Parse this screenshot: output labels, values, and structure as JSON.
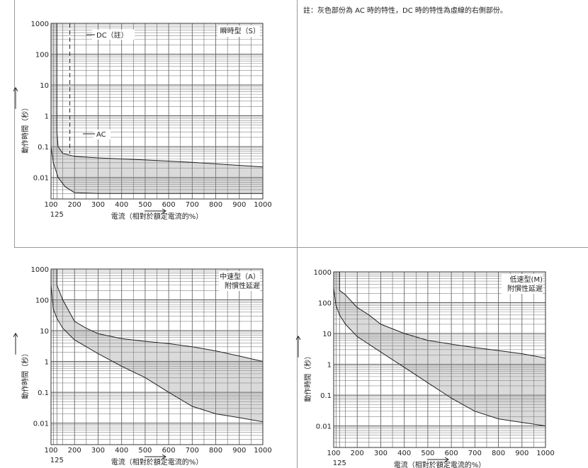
{
  "note": "註：灰色部份為 AC 時的特性，DC 時的特性為虛線的右側部份。",
  "chart_data": [
    {
      "type": "area",
      "id": "S",
      "title": "瞬時型（S）",
      "title2": "",
      "xlabel": "電流（相對於額定電流的%）",
      "ylabel": "動作時間（秒）",
      "xlim": [
        100,
        1000
      ],
      "ylim": [
        0.002,
        1000
      ],
      "yscale": "log",
      "x_ticks": [
        "100",
        "200",
        "300",
        "400",
        "500",
        "600",
        "700",
        "800",
        "900",
        "1000"
      ],
      "x_extra_tick": "125",
      "y_ticks": [
        "1000",
        "100",
        "10",
        "1",
        "0.1",
        "0.01"
      ],
      "annotations": [
        "DC（註）",
        "AC"
      ],
      "series": [
        {
          "values_upper": [
            [
              125,
              1000
            ],
            [
              125,
              0.3
            ],
            [
              130,
              0.1
            ],
            [
              150,
              0.06
            ],
            [
              200,
              0.048
            ],
            [
              300,
              0.043
            ],
            [
              500,
              0.037
            ],
            [
              700,
              0.031
            ],
            [
              1000,
              0.022
            ]
          ]
        },
        {
          "values_lower": [
            [
              100,
              1000
            ],
            [
              100,
              0.1
            ],
            [
              110,
              0.03
            ],
            [
              130,
              0.01
            ],
            [
              160,
              0.005
            ],
            [
              200,
              0.0032
            ],
            [
              300,
              0.003
            ],
            [
              500,
              0.003
            ],
            [
              1000,
              0.003
            ]
          ]
        }
      ]
    },
    {
      "type": "area",
      "id": "A",
      "title": "中速型（A）",
      "title2": "附慣性延遲",
      "xlabel": "電流（相對於額定電流的%）",
      "ylabel": "動作時間（秒）",
      "xlim": [
        100,
        1000
      ],
      "ylim": [
        0.002,
        1000
      ],
      "yscale": "log",
      "x_ticks": [
        "100",
        "200",
        "300",
        "400",
        "500",
        "600",
        "700",
        "800",
        "900",
        "1000"
      ],
      "x_extra_tick": "125",
      "y_ticks": [
        "1000",
        "100",
        "10",
        "1",
        "0.1",
        "0.01"
      ],
      "annotations": [],
      "series": [
        {
          "values_upper": [
            [
              125,
              1000
            ],
            [
              125,
              300
            ],
            [
              150,
              100
            ],
            [
              200,
              20
            ],
            [
              250,
              12
            ],
            [
              300,
              8
            ],
            [
              400,
              5.5
            ],
            [
              500,
              4.5
            ],
            [
              600,
              3.8
            ],
            [
              700,
              3
            ],
            [
              800,
              2.2
            ],
            [
              900,
              1.5
            ],
            [
              1000,
              1
            ]
          ]
        },
        {
          "values_lower": [
            [
              100,
              1000
            ],
            [
              100,
              300
            ],
            [
              110,
              50
            ],
            [
              125,
              25
            ],
            [
              150,
              12
            ],
            [
              200,
              5
            ],
            [
              300,
              1.8
            ],
            [
              400,
              0.7
            ],
            [
              500,
              0.3
            ],
            [
              600,
              0.1
            ],
            [
              700,
              0.035
            ],
            [
              800,
              0.02
            ],
            [
              900,
              0.015
            ],
            [
              1000,
              0.011
            ]
          ]
        }
      ]
    },
    {
      "type": "area",
      "id": "M",
      "title": "低速型(M)",
      "title2": "附慣性延遲",
      "xlabel": "電流（相對於額定電流的%）",
      "ylabel": "動作時間（秒）",
      "xlim": [
        100,
        1000
      ],
      "ylim": [
        0.002,
        1000
      ],
      "yscale": "log",
      "x_ticks": [
        "100",
        "200",
        "300",
        "400",
        "500",
        "600",
        "700",
        "800",
        "900",
        "1000"
      ],
      "x_extra_tick": "125",
      "y_ticks": [
        "1000",
        "100",
        "10",
        "1",
        "0.1",
        "0.01"
      ],
      "annotations": [],
      "series": [
        {
          "values_upper": [
            [
              125,
              1000
            ],
            [
              125,
              250
            ],
            [
              150,
              180
            ],
            [
              200,
              70
            ],
            [
              250,
              40
            ],
            [
              300,
              20
            ],
            [
              400,
              10
            ],
            [
              500,
              6
            ],
            [
              600,
              4.5
            ],
            [
              700,
              3.5
            ],
            [
              800,
              2.8
            ],
            [
              900,
              2.2
            ],
            [
              1000,
              1.6
            ]
          ]
        },
        {
          "values_lower": [
            [
              100,
              1000
            ],
            [
              100,
              300
            ],
            [
              110,
              80
            ],
            [
              125,
              40
            ],
            [
              150,
              20
            ],
            [
              200,
              8
            ],
            [
              300,
              2.5
            ],
            [
              400,
              0.8
            ],
            [
              500,
              0.25
            ],
            [
              600,
              0.08
            ],
            [
              700,
              0.03
            ],
            [
              800,
              0.017
            ],
            [
              900,
              0.013
            ],
            [
              1000,
              0.01
            ]
          ]
        }
      ]
    }
  ]
}
